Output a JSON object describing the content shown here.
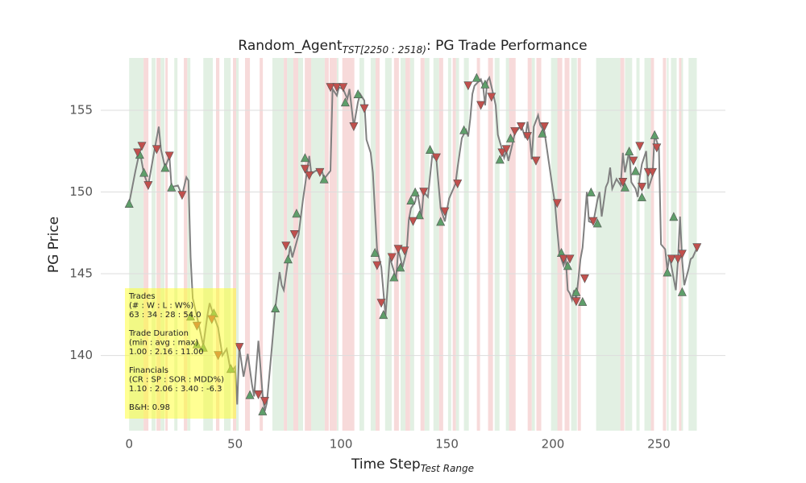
{
  "chart_data": {
    "type": "trade",
    "title": "Random_Agent",
    "title_subscript": "TST[2250 : 2518)",
    "title_suffix": ": PG Trade Performance",
    "xlabel": "Time Step",
    "xlabel_subscript": "Test Range",
    "ylabel": "PG Price",
    "xlim": [
      -13.4,
      281.4
    ],
    "ylim": [
      135.4,
      158.2
    ],
    "xticks": [
      0,
      50,
      100,
      150,
      200,
      250
    ],
    "yticks": [
      140,
      145,
      150,
      155
    ],
    "grid": "y",
    "color": "#808080",
    "x": [
      0,
      3,
      5,
      7,
      9,
      12,
      14,
      15,
      17,
      19,
      20,
      23,
      25,
      27,
      28,
      29,
      30,
      33,
      35,
      37,
      38,
      40,
      42,
      44,
      46,
      48,
      50,
      51,
      52,
      54,
      56,
      58,
      59,
      61,
      63,
      64,
      65,
      67,
      69,
      71,
      72,
      73,
      76,
      77,
      80,
      82,
      85,
      86,
      88,
      91,
      92,
      95,
      96,
      98,
      99,
      101,
      103,
      104,
      106,
      108,
      109,
      111,
      112,
      114,
      115,
      117,
      119,
      121,
      123,
      126,
      127,
      129,
      131,
      132,
      133,
      135,
      136,
      138,
      139,
      141,
      143,
      145,
      147,
      149,
      151,
      154,
      155,
      157,
      159,
      160,
      161,
      162,
      163,
      166,
      167,
      168,
      169,
      170,
      172,
      173,
      174,
      176,
      177,
      178,
      179,
      181,
      182,
      184,
      185,
      187,
      188,
      189,
      190,
      191,
      193,
      194,
      196,
      198,
      200,
      201,
      202,
      203,
      205,
      206,
      207,
      208,
      209,
      210,
      211,
      212,
      213,
      214,
      216,
      217,
      219,
      221,
      222,
      223,
      225,
      226,
      227,
      228,
      230,
      232,
      233,
      234,
      236,
      237,
      239,
      240,
      241,
      242,
      244,
      245,
      247,
      248,
      250,
      251,
      253,
      254,
      255,
      256,
      258,
      259,
      260,
      261,
      262,
      264,
      265,
      266,
      268
    ],
    "values": [
      149.3,
      151.3,
      152.5,
      151.1,
      150.4,
      152.6,
      154.0,
      152.6,
      151.5,
      152.2,
      150.3,
      150.4,
      149.8,
      150.9,
      150.7,
      146.0,
      143.5,
      141.8,
      140.6,
      142.5,
      143.2,
      142.4,
      141.7,
      140.0,
      140.4,
      139.0,
      139.3,
      137.0,
      140.5,
      138.7,
      140.1,
      138.2,
      137.5,
      140.9,
      137.6,
      136.6,
      137.1,
      140.0,
      142.9,
      145.1,
      144.3,
      144.0,
      146.7,
      146.0,
      147.4,
      149.5,
      152.2,
      151.1,
      151.3,
      151.3,
      150.8,
      151.3,
      156.3,
      155.9,
      156.4,
      156.3,
      155.7,
      156.3,
      154.0,
      155.5,
      156.0,
      155.6,
      153.2,
      152.4,
      151.2,
      146.5,
      145.4,
      142.4,
      146.0,
      144.7,
      146.5,
      145.4,
      146.4,
      148.3,
      149.0,
      149.4,
      150.0,
      148.5,
      150.0,
      149.7,
      152.2,
      152.0,
      149.0,
      148.2,
      149.6,
      150.5,
      151.5,
      153.3,
      153.8,
      153.4,
      154.5,
      156.0,
      156.5,
      156.9,
      156.5,
      155.3,
      156.8,
      157.0,
      155.9,
      155.3,
      153.5,
      152.6,
      152.1,
      152.5,
      151.9,
      153.0,
      153.6,
      153.9,
      154.1,
      153.3,
      154.3,
      153.4,
      152.0,
      154.0,
      154.7,
      154.1,
      153.7,
      151.9,
      150.1,
      149.3,
      147.7,
      146.3,
      145.5,
      146.0,
      144.0,
      143.8,
      143.4,
      144.0,
      143.4,
      144.7,
      145.9,
      146.6,
      150.0,
      148.2,
      148.1,
      149.5,
      150.0,
      148.5,
      150.3,
      150.6,
      151.5,
      150.2,
      150.8,
      150.4,
      152.4,
      151.2,
      152.5,
      150.6,
      150.2,
      149.7,
      150.9,
      151.7,
      152.5,
      150.2,
      151.0,
      153.5,
      152.7,
      146.8,
      146.5,
      145.2,
      146.1,
      145.4,
      144.0,
      145.8,
      148.5,
      145.8,
      144.3,
      145.3,
      145.9,
      146.0,
      146.6
    ],
    "buys": {
      "color": "#5f9e6a",
      "x": [
        0,
        5,
        7,
        17,
        20,
        29,
        32,
        35,
        40,
        48,
        57,
        63,
        69,
        75,
        79,
        83,
        92,
        102,
        108,
        116,
        120,
        125,
        128,
        133,
        135,
        137,
        142,
        147,
        158,
        164,
        168,
        175,
        180,
        195,
        204,
        207,
        211,
        214,
        218,
        221,
        234,
        236,
        239,
        242,
        248,
        254,
        257,
        261
      ],
      "values": [
        149.3,
        152.3,
        151.2,
        151.5,
        150.3,
        142.4,
        140.7,
        140.5,
        142.6,
        139.2,
        137.6,
        136.6,
        142.9,
        145.9,
        148.7,
        152.1,
        150.8,
        155.5,
        156.0,
        146.3,
        142.5,
        144.8,
        145.4,
        149.5,
        150.0,
        148.6,
        152.6,
        148.2,
        153.8,
        157.0,
        156.6,
        152.0,
        153.3,
        153.6,
        146.3,
        145.5,
        143.9,
        143.3,
        150.0,
        148.1,
        150.3,
        152.5,
        151.3,
        149.7,
        153.5,
        145.1,
        148.5,
        143.9
      ]
    },
    "sells": {
      "color": "#c0504d",
      "x": [
        4,
        6,
        9,
        13,
        19,
        25,
        32,
        39,
        42,
        52,
        61,
        64,
        74,
        78,
        83,
        85,
        90,
        95,
        98,
        101,
        106,
        111,
        117,
        119,
        124,
        127,
        130,
        134,
        139,
        145,
        149,
        155,
        160,
        166,
        171,
        176,
        178,
        182,
        185,
        188,
        192,
        196,
        202,
        205,
        208,
        211,
        215,
        219,
        233,
        238,
        241,
        242,
        245,
        247,
        249,
        256,
        259,
        261,
        268
      ],
      "values": [
        152.4,
        152.8,
        150.4,
        152.6,
        152.2,
        149.8,
        141.8,
        142.2,
        140.0,
        140.5,
        137.6,
        137.2,
        146.7,
        147.4,
        151.4,
        151.0,
        151.2,
        156.4,
        156.4,
        156.4,
        154.0,
        155.1,
        145.5,
        143.2,
        146.0,
        146.5,
        146.4,
        148.2,
        150.0,
        152.1,
        148.8,
        150.5,
        156.5,
        155.3,
        155.8,
        152.4,
        152.6,
        153.7,
        154.0,
        153.4,
        151.9,
        154.0,
        149.3,
        145.9,
        145.9,
        143.3,
        144.7,
        148.2,
        150.6,
        151.9,
        152.8,
        150.3,
        151.2,
        151.2,
        152.7,
        145.9,
        145.9,
        146.2,
        146.6
      ]
    },
    "long_color": "#e2f0e3",
    "short_color": "#f7dada",
    "long_spans": [
      [
        0,
        6.8
      ],
      [
        10.6,
        12.5
      ],
      [
        14.8,
        16.7
      ],
      [
        21.3,
        22.8
      ],
      [
        27.4,
        28.9
      ],
      [
        35,
        39.5
      ],
      [
        44.8,
        47.9
      ],
      [
        50.5,
        51.7
      ],
      [
        67.6,
        73
      ],
      [
        74.5,
        77.5
      ],
      [
        79.8,
        82.1
      ],
      [
        85.9,
        92.3
      ],
      [
        98,
        98.8
      ],
      [
        102.9,
        105.2
      ],
      [
        108.7,
        110.9
      ],
      [
        114,
        116.3
      ],
      [
        120.8,
        123.9
      ],
      [
        128.1,
        130.4
      ],
      [
        132.6,
        134.5
      ],
      [
        139.4,
        141.7
      ],
      [
        143.6,
        146.3
      ],
      [
        150.5,
        152
      ],
      [
        154.2,
        155.7
      ],
      [
        158,
        160.3
      ],
      [
        172.5,
        174.8
      ],
      [
        177.8,
        179.3
      ],
      [
        190,
        191.5
      ],
      [
        199.1,
        202.1
      ],
      [
        208.6,
        211.3
      ],
      [
        220.4,
        231.8
      ],
      [
        234,
        237.4
      ],
      [
        239.4,
        240.9
      ],
      [
        243.2,
        246.2
      ],
      [
        253.8,
        254.6
      ],
      [
        255.7,
        258.4
      ],
      [
        260.3,
        261.4
      ],
      [
        264,
        267.9
      ]
    ],
    "short_spans": [
      [
        6.8,
        9.1
      ],
      [
        12.9,
        14.8
      ],
      [
        17.1,
        18.2
      ],
      [
        25.8,
        27.4
      ],
      [
        41,
        42.6
      ],
      [
        49,
        50.5
      ],
      [
        54.7,
        57
      ],
      [
        61.6,
        63.1
      ],
      [
        73,
        74.5
      ],
      [
        77.5,
        79.8
      ],
      [
        82.9,
        85.9
      ],
      [
        92.3,
        94.2
      ],
      [
        94.6,
        98
      ],
      [
        100.6,
        106.3
      ],
      [
        116.3,
        118.2
      ],
      [
        125,
        127.3
      ],
      [
        130.4,
        132.6
      ],
      [
        137.5,
        139.4
      ],
      [
        146.3,
        148.2
      ],
      [
        152.7,
        154.2
      ],
      [
        164.1,
        165.6
      ],
      [
        169.4,
        171.7
      ],
      [
        179.3,
        182.4
      ],
      [
        188.1,
        190
      ],
      [
        192.2,
        194.5
      ],
      [
        202.1,
        204.4
      ],
      [
        205.5,
        207.8
      ],
      [
        211.7,
        213.2
      ],
      [
        231.8,
        233.7
      ],
      [
        246.2,
        247.7
      ],
      [
        251.9,
        253.4
      ],
      [
        259.5,
        260.6
      ]
    ],
    "annotation": [
      [
        "Trades",
        "(# : W : L : W%)",
        "63 : 34 : 28 : 54.0"
      ],
      [
        "Trade Duration",
        "(min : avg : max)",
        "1.00 : 2.16 : 11.00"
      ],
      [
        "Financials",
        "(CR : SP : SOR : MDD%)",
        "1.10 : 2.06 : 3.40 : -6.3"
      ],
      [
        "B&H: 0.98"
      ]
    ]
  }
}
